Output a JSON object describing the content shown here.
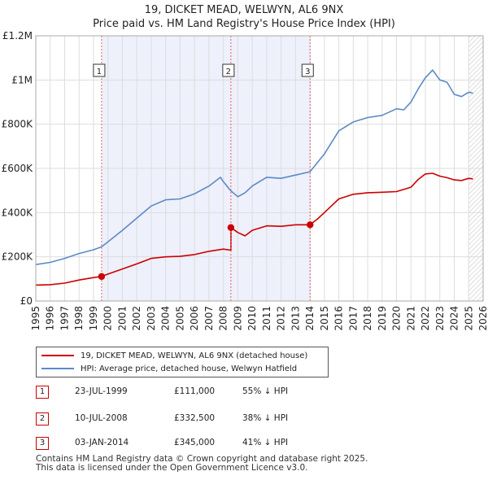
{
  "title_line1": "19, DICKET MEAD, WELWYN, AL6 9NX",
  "title_line2": "Price paid vs. HM Land Registry's House Price Index (HPI)",
  "chart_data": {
    "type": "line",
    "x_range": [
      1995,
      2026
    ],
    "y_range": [
      0,
      1200000
    ],
    "y_ticks": [
      {
        "value": 0,
        "label": "£0"
      },
      {
        "value": 200000,
        "label": "£200K"
      },
      {
        "value": 400000,
        "label": "£400K"
      },
      {
        "value": 600000,
        "label": "£600K"
      },
      {
        "value": 800000,
        "label": "£800K"
      },
      {
        "value": 1000000,
        "label": "£1M"
      },
      {
        "value": 1200000,
        "label": "£1.2M"
      }
    ],
    "x_ticks": [
      "1995",
      "1996",
      "1997",
      "1998",
      "1999",
      "2000",
      "2001",
      "2002",
      "2003",
      "2004",
      "2005",
      "2006",
      "2007",
      "2008",
      "2009",
      "2010",
      "2011",
      "2012",
      "2013",
      "2014",
      "2015",
      "2016",
      "2017",
      "2018",
      "2019",
      "2020",
      "2021",
      "2022",
      "2023",
      "2024",
      "2025",
      "2026"
    ],
    "grid": true,
    "ownership_shading": {
      "from": 1999.56,
      "to": 2014.01,
      "color": "#eef0fb"
    },
    "future_hatch_from": 2025.0,
    "series": [
      {
        "name": "hpi",
        "color": "#5b8ac6",
        "x": [
          1995.0,
          1996.0,
          1997.0,
          1998.0,
          1999.0,
          1999.56,
          2000.0,
          2001.0,
          2002.0,
          2003.0,
          2004.0,
          2005.0,
          2006.0,
          2007.0,
          2007.8,
          2008.0,
          2008.5,
          2009.0,
          2009.5,
          2010.0,
          2011.0,
          2012.0,
          2013.0,
          2014.0,
          2015.0,
          2016.0,
          2017.0,
          2018.0,
          2019.0,
          2020.0,
          2020.5,
          2021.0,
          2021.5,
          2022.0,
          2022.5,
          2023.0,
          2023.5,
          2024.0,
          2024.5,
          2025.0,
          2025.3
        ],
        "y": [
          165000,
          175000,
          193000,
          215000,
          232000,
          245000,
          268000,
          320000,
          375000,
          430000,
          458000,
          462000,
          485000,
          520000,
          560000,
          540000,
          500000,
          472000,
          490000,
          520000,
          560000,
          555000,
          570000,
          585000,
          665000,
          770000,
          810000,
          830000,
          840000,
          870000,
          865000,
          900000,
          960000,
          1010000,
          1045000,
          1000000,
          990000,
          935000,
          925000,
          945000,
          940000
        ]
      },
      {
        "name": "price_paid",
        "color": "#cc0000",
        "x": [
          1995.0,
          1996.0,
          1997.0,
          1998.0,
          1999.0,
          1999.56,
          2000.0,
          2001.0,
          2002.0,
          2003.0,
          2004.0,
          2005.0,
          2006.0,
          2007.0,
          2008.0,
          2008.52,
          2008.53,
          2009.0,
          2009.5,
          2010.0,
          2011.0,
          2012.0,
          2013.0,
          2014.0,
          2014.5,
          2015.0,
          2016.0,
          2017.0,
          2018.0,
          2019.0,
          2020.0,
          2021.0,
          2021.5,
          2022.0,
          2022.5,
          2023.0,
          2023.5,
          2024.0,
          2024.5,
          2025.0,
          2025.3
        ],
        "y": [
          72000,
          74000,
          81000,
          95000,
          106000,
          111000,
          122000,
          145000,
          168000,
          193000,
          200000,
          202000,
          210000,
          225000,
          235000,
          230000,
          332500,
          310000,
          295000,
          320000,
          340000,
          338000,
          345000,
          345000,
          370000,
          400000,
          462000,
          483000,
          490000,
          492000,
          495000,
          515000,
          550000,
          575000,
          578000,
          565000,
          558000,
          548000,
          545000,
          555000,
          552000
        ]
      }
    ],
    "sales": [
      {
        "n": "1",
        "x": 1999.56,
        "y": 111000
      },
      {
        "n": "2",
        "x": 2008.52,
        "y": 332500
      },
      {
        "n": "3",
        "x": 2014.01,
        "y": 345000
      }
    ]
  },
  "legend": {
    "property_label": "19, DICKET MEAD, WELWYN, AL6 9NX (detached house)",
    "hpi_label": "HPI: Average price, detached house, Welwyn Hatfield"
  },
  "transactions": [
    {
      "n": "1",
      "date": "23-JUL-1999",
      "price": "£111,000",
      "delta": "55% ↓ HPI"
    },
    {
      "n": "2",
      "date": "10-JUL-2008",
      "price": "£332,500",
      "delta": "38% ↓ HPI"
    },
    {
      "n": "3",
      "date": "03-JAN-2014",
      "price": "£345,000",
      "delta": "41% ↓ HPI"
    }
  ],
  "footer": {
    "line1": "Contains HM Land Registry data © Crown copyright and database right 2025.",
    "line2": "This data is licensed under the Open Government Licence v3.0."
  }
}
